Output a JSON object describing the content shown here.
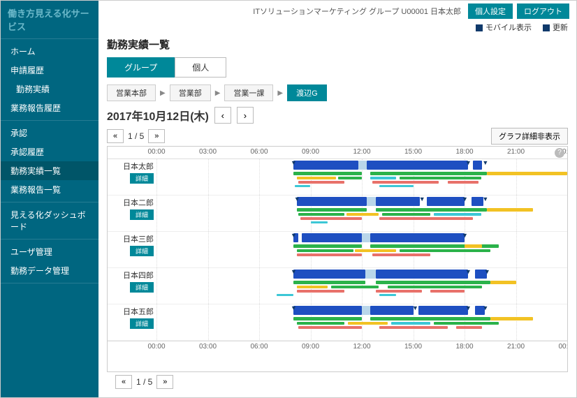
{
  "brand": "働き方見える化サービス",
  "topbar": {
    "org": "ITソリューションマーケティング グループ U00001 日本太郎",
    "settings": "個人設定",
    "logout": "ログアウト",
    "mobile": "モバイル表示",
    "update": "更新"
  },
  "nav": [
    {
      "label": "ホーム",
      "sub": false
    },
    {
      "label": "申請履歴",
      "sub": false
    },
    {
      "label": "勤務実績",
      "sub": true
    },
    {
      "label": "業務報告履歴",
      "sub": false
    },
    {
      "label": "承認",
      "sub": false
    },
    {
      "label": "承認履歴",
      "sub": false
    },
    {
      "label": "勤務実績一覧",
      "sub": false,
      "active": true
    },
    {
      "label": "業務報告一覧",
      "sub": false
    },
    {
      "label": "見える化ダッシュボード",
      "sub": false
    },
    {
      "label": "ユーザ管理",
      "sub": false
    },
    {
      "label": "勤務データ管理",
      "sub": false
    }
  ],
  "nav_breaks": [
    3,
    7,
    8
  ],
  "page_title": "勤務実績一覧",
  "tabs": {
    "group": "グループ",
    "individual": "個人"
  },
  "breadcrumb": [
    "営業本部",
    "営業部",
    "営業一課",
    "渡辺G"
  ],
  "date": "2017年10月12日(木)",
  "pager": {
    "page": "1 / 5"
  },
  "graph_toggle": "グラフ詳細非表示",
  "time_ticks": [
    "00:00",
    "03:00",
    "06:00",
    "09:00",
    "12:00",
    "15:00",
    "18:00",
    "21:00",
    "00:00"
  ],
  "chart": {
    "hours": 24,
    "colors": {
      "main": "#1e4fc1",
      "green": "#2bb24a",
      "yellow": "#f2c224",
      "red": "#e8716a",
      "cyan": "#3cc7d6",
      "lightblue": "#b9d6ea",
      "triangle": "#103a6b"
    },
    "people": [
      {
        "name": "日本太郎",
        "detail": "詳細",
        "bars": [
          {
            "y": 2,
            "h": 13,
            "c": "main",
            "s": 8.0,
            "e": 11.8
          },
          {
            "y": 2,
            "h": 13,
            "c": "lightblue",
            "s": 11.8,
            "e": 12.3
          },
          {
            "y": 2,
            "h": 13,
            "c": "main",
            "s": 12.3,
            "e": 18.2
          },
          {
            "y": 2,
            "h": 13,
            "c": "main",
            "s": 18.5,
            "e": 19.0
          },
          {
            "y": 18,
            "h": 5,
            "c": "green",
            "s": 8.0,
            "e": 12.0
          },
          {
            "y": 18,
            "h": 5,
            "c": "green",
            "s": 12.5,
            "e": 19.3
          },
          {
            "y": 18,
            "h": 5,
            "c": "yellow",
            "s": 19.3,
            "e": 24.0
          },
          {
            "y": 25,
            "h": 4,
            "c": "yellow",
            "s": 8.2,
            "e": 10.5
          },
          {
            "y": 25,
            "h": 4,
            "c": "green",
            "s": 10.6,
            "e": 12.0
          },
          {
            "y": 25,
            "h": 4,
            "c": "cyan",
            "s": 12.5,
            "e": 14.0
          },
          {
            "y": 25,
            "h": 4,
            "c": "green",
            "s": 14.2,
            "e": 19.0
          },
          {
            "y": 31,
            "h": 4,
            "c": "red",
            "s": 8.3,
            "e": 11.0
          },
          {
            "y": 31,
            "h": 4,
            "c": "red",
            "s": 12.6,
            "e": 16.5
          },
          {
            "y": 31,
            "h": 4,
            "c": "red",
            "s": 17.0,
            "e": 18.8
          },
          {
            "y": 37,
            "h": 3,
            "c": "cyan",
            "s": 8.1,
            "e": 9.0
          },
          {
            "y": 37,
            "h": 3,
            "c": "cyan",
            "s": 13.0,
            "e": 15.0
          }
        ],
        "markers": [
          8.0,
          18.2,
          19.2
        ]
      },
      {
        "name": "日本二郎",
        "detail": "詳細",
        "bars": [
          {
            "y": 2,
            "h": 13,
            "c": "main",
            "s": 8.2,
            "e": 12.3
          },
          {
            "y": 2,
            "h": 13,
            "c": "lightblue",
            "s": 12.3,
            "e": 12.8
          },
          {
            "y": 2,
            "h": 13,
            "c": "main",
            "s": 12.8,
            "e": 15.4
          },
          {
            "y": 2,
            "h": 13,
            "c": "main",
            "s": 15.8,
            "e": 18.0
          },
          {
            "y": 2,
            "h": 13,
            "c": "main",
            "s": 18.4,
            "e": 19.1
          },
          {
            "y": 18,
            "h": 5,
            "c": "green",
            "s": 8.2,
            "e": 12.3
          },
          {
            "y": 18,
            "h": 5,
            "c": "green",
            "s": 12.8,
            "e": 19.3
          },
          {
            "y": 18,
            "h": 5,
            "c": "yellow",
            "s": 19.3,
            "e": 22.0
          },
          {
            "y": 25,
            "h": 4,
            "c": "green",
            "s": 8.3,
            "e": 11.0
          },
          {
            "y": 25,
            "h": 4,
            "c": "yellow",
            "s": 11.1,
            "e": 13.0
          },
          {
            "y": 25,
            "h": 4,
            "c": "green",
            "s": 13.2,
            "e": 16.0
          },
          {
            "y": 25,
            "h": 4,
            "c": "cyan",
            "s": 16.2,
            "e": 19.0
          },
          {
            "y": 31,
            "h": 4,
            "c": "red",
            "s": 8.4,
            "e": 12.0
          },
          {
            "y": 31,
            "h": 4,
            "c": "red",
            "s": 13.0,
            "e": 18.5
          },
          {
            "y": 37,
            "h": 3,
            "c": "cyan",
            "s": 9.0,
            "e": 10.0
          }
        ],
        "markers": [
          8.2,
          15.5,
          18.0,
          19.2
        ]
      },
      {
        "name": "日本三郎",
        "detail": "詳細",
        "bars": [
          {
            "y": 2,
            "h": 13,
            "c": "main",
            "s": 8.0,
            "e": 8.3
          },
          {
            "y": 2,
            "h": 13,
            "c": "main",
            "s": 8.5,
            "e": 12.0
          },
          {
            "y": 2,
            "h": 13,
            "c": "lightblue",
            "s": 12.0,
            "e": 12.5
          },
          {
            "y": 2,
            "h": 13,
            "c": "main",
            "s": 12.5,
            "e": 18.0
          },
          {
            "y": 18,
            "h": 5,
            "c": "green",
            "s": 8.0,
            "e": 12.0
          },
          {
            "y": 18,
            "h": 5,
            "c": "green",
            "s": 12.5,
            "e": 20.0
          },
          {
            "y": 18,
            "h": 5,
            "c": "yellow",
            "s": 18.0,
            "e": 19.0
          },
          {
            "y": 25,
            "h": 4,
            "c": "green",
            "s": 8.2,
            "e": 11.5
          },
          {
            "y": 25,
            "h": 4,
            "c": "yellow",
            "s": 11.6,
            "e": 14.0
          },
          {
            "y": 25,
            "h": 4,
            "c": "green",
            "s": 14.2,
            "e": 19.5
          },
          {
            "y": 31,
            "h": 4,
            "c": "red",
            "s": 8.2,
            "e": 12.0
          },
          {
            "y": 31,
            "h": 4,
            "c": "red",
            "s": 12.6,
            "e": 16.0
          }
        ],
        "markers": [
          8.0,
          18.0
        ]
      },
      {
        "name": "日本四郎",
        "detail": "詳細",
        "bars": [
          {
            "y": 2,
            "h": 13,
            "c": "main",
            "s": 8.0,
            "e": 12.2
          },
          {
            "y": 2,
            "h": 13,
            "c": "lightblue",
            "s": 12.2,
            "e": 12.8
          },
          {
            "y": 2,
            "h": 13,
            "c": "main",
            "s": 12.8,
            "e": 18.2
          },
          {
            "y": 2,
            "h": 13,
            "c": "main",
            "s": 18.6,
            "e": 19.3
          },
          {
            "y": 18,
            "h": 5,
            "c": "green",
            "s": 8.0,
            "e": 12.2
          },
          {
            "y": 18,
            "h": 5,
            "c": "green",
            "s": 12.8,
            "e": 19.5
          },
          {
            "y": 18,
            "h": 5,
            "c": "yellow",
            "s": 19.5,
            "e": 21.0
          },
          {
            "y": 25,
            "h": 4,
            "c": "yellow",
            "s": 8.2,
            "e": 10.0
          },
          {
            "y": 25,
            "h": 4,
            "c": "green",
            "s": 10.2,
            "e": 13.0
          },
          {
            "y": 25,
            "h": 4,
            "c": "green",
            "s": 13.5,
            "e": 19.0
          },
          {
            "y": 31,
            "h": 4,
            "c": "red",
            "s": 8.2,
            "e": 11.0
          },
          {
            "y": 31,
            "h": 4,
            "c": "red",
            "s": 12.8,
            "e": 15.5
          },
          {
            "y": 31,
            "h": 4,
            "c": "red",
            "s": 16.0,
            "e": 18.0
          },
          {
            "y": 37,
            "h": 3,
            "c": "cyan",
            "s": 7.0,
            "e": 8.0
          },
          {
            "y": 37,
            "h": 3,
            "c": "cyan",
            "s": 13.0,
            "e": 14.0
          }
        ],
        "markers": [
          8.0,
          18.2,
          19.3
        ]
      },
      {
        "name": "日本五郎",
        "detail": "詳細",
        "bars": [
          {
            "y": 2,
            "h": 13,
            "c": "main",
            "s": 8.0,
            "e": 12.0
          },
          {
            "y": 2,
            "h": 13,
            "c": "lightblue",
            "s": 12.0,
            "e": 12.5
          },
          {
            "y": 2,
            "h": 13,
            "c": "main",
            "s": 12.5,
            "e": 15.0
          },
          {
            "y": 2,
            "h": 13,
            "c": "main",
            "s": 15.3,
            "e": 18.2
          },
          {
            "y": 2,
            "h": 13,
            "c": "main",
            "s": 18.6,
            "e": 19.2
          },
          {
            "y": 18,
            "h": 5,
            "c": "green",
            "s": 8.0,
            "e": 12.0
          },
          {
            "y": 18,
            "h": 5,
            "c": "green",
            "s": 12.5,
            "e": 19.5
          },
          {
            "y": 18,
            "h": 5,
            "c": "yellow",
            "s": 19.5,
            "e": 22.0
          },
          {
            "y": 25,
            "h": 4,
            "c": "green",
            "s": 8.2,
            "e": 11.0
          },
          {
            "y": 25,
            "h": 4,
            "c": "yellow",
            "s": 11.2,
            "e": 13.5
          },
          {
            "y": 25,
            "h": 4,
            "c": "cyan",
            "s": 13.7,
            "e": 16.0
          },
          {
            "y": 25,
            "h": 4,
            "c": "green",
            "s": 16.2,
            "e": 20.0
          },
          {
            "y": 31,
            "h": 4,
            "c": "red",
            "s": 8.3,
            "e": 12.0
          },
          {
            "y": 31,
            "h": 4,
            "c": "red",
            "s": 13.0,
            "e": 17.0
          },
          {
            "y": 31,
            "h": 4,
            "c": "red",
            "s": 17.5,
            "e": 19.0
          }
        ],
        "markers": [
          8.0,
          15.1,
          18.2,
          19.2
        ]
      }
    ]
  }
}
